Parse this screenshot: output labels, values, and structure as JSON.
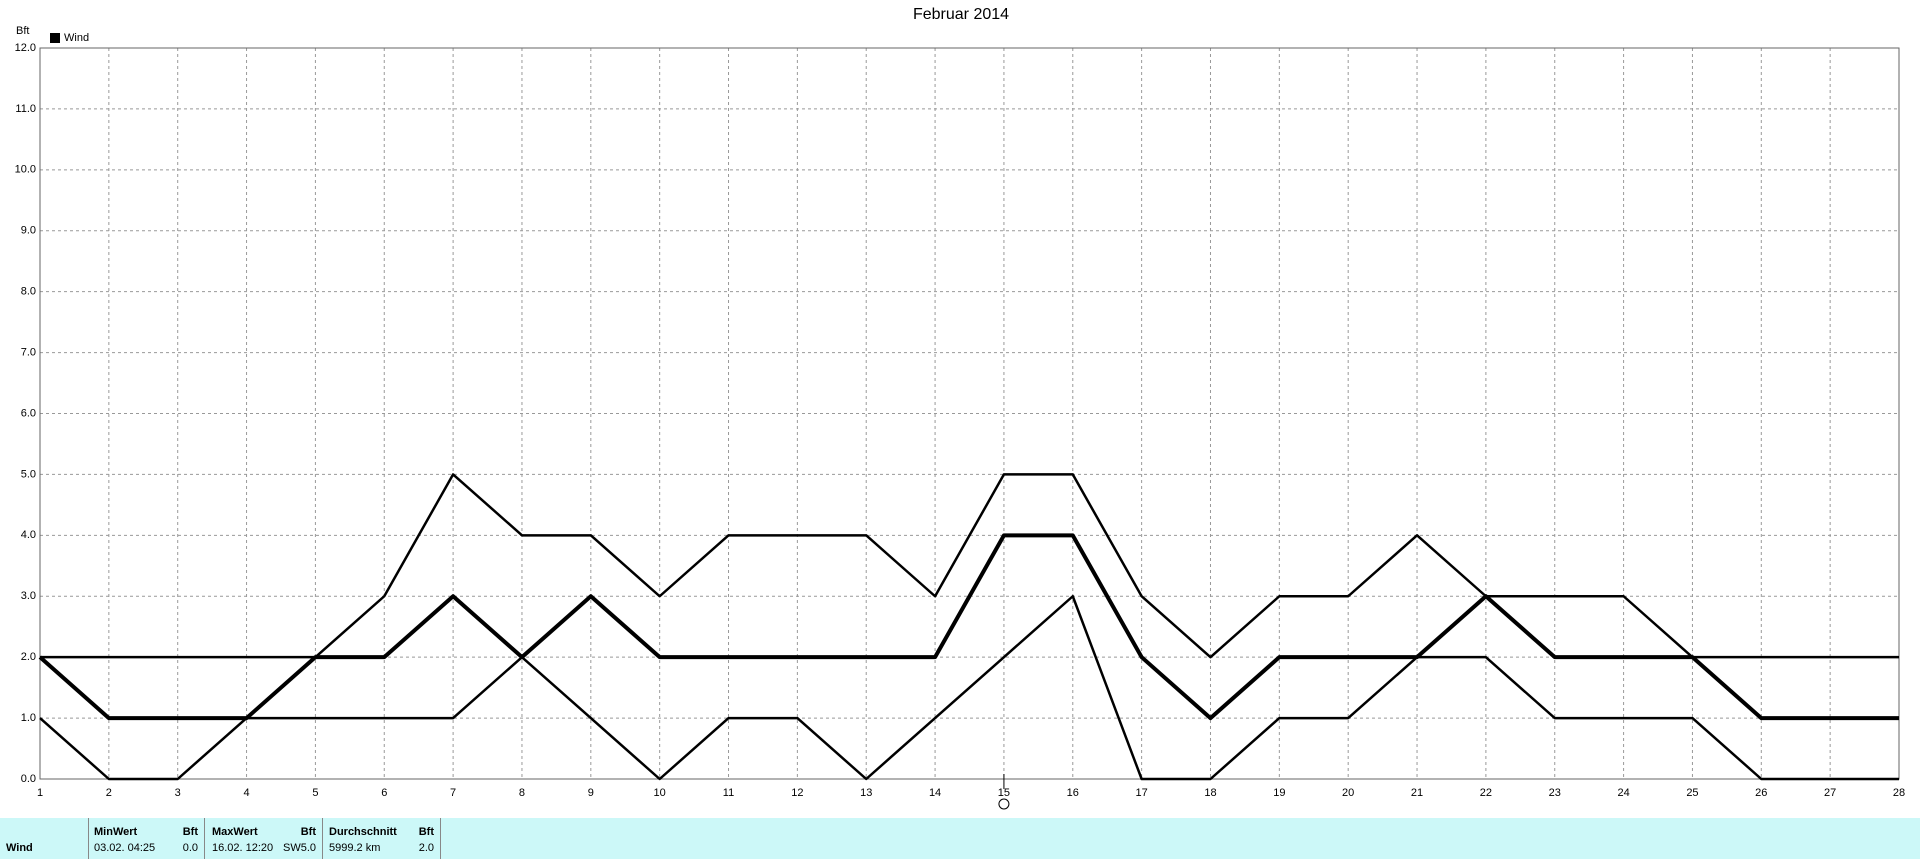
{
  "chart_data": {
    "type": "line",
    "title": "Februar 2014",
    "y_label": "Bft",
    "x": [
      1,
      2,
      3,
      4,
      5,
      6,
      7,
      8,
      9,
      10,
      11,
      12,
      13,
      14,
      15,
      16,
      17,
      18,
      19,
      20,
      21,
      22,
      23,
      24,
      25,
      26,
      27,
      28
    ],
    "xlim": [
      1,
      28
    ],
    "xticks": [
      1,
      2,
      3,
      4,
      5,
      6,
      7,
      8,
      9,
      10,
      11,
      12,
      13,
      14,
      15,
      16,
      17,
      18,
      19,
      20,
      21,
      22,
      23,
      24,
      25,
      26,
      27,
      28
    ],
    "ylim": [
      0,
      12
    ],
    "yticks": [
      {
        "value": 0,
        "label": "0.0"
      },
      {
        "value": 1,
        "label": "1.0"
      },
      {
        "value": 2,
        "label": "2.0"
      },
      {
        "value": 3,
        "label": "3.0"
      },
      {
        "value": 4,
        "label": "4.0"
      },
      {
        "value": 5,
        "label": "5.0"
      },
      {
        "value": 6,
        "label": "6.0"
      },
      {
        "value": 7,
        "label": "7.0"
      },
      {
        "value": 8,
        "label": "8.0"
      },
      {
        "value": 9,
        "label": "9.0"
      },
      {
        "value": 10,
        "label": "10.0"
      },
      {
        "value": 11,
        "label": "11.0"
      },
      {
        "value": 12,
        "label": "12.0"
      }
    ],
    "grid": true,
    "legend_position": "top-left",
    "series": [
      {
        "name": "Wind",
        "color": "#000000",
        "values": [
          2,
          1,
          1,
          1,
          2,
          2,
          3,
          2,
          3,
          2,
          2,
          2,
          2,
          2,
          4,
          4,
          2,
          1,
          2,
          2,
          2,
          3,
          2,
          2,
          2,
          1,
          1,
          1
        ]
      },
      {
        "color": "#000000",
        "values": [
          2,
          2,
          2,
          2,
          2,
          3,
          5,
          4,
          4,
          3,
          4,
          4,
          4,
          3,
          5,
          5,
          3,
          2,
          3,
          3,
          4,
          3,
          3,
          3,
          2,
          2,
          2,
          2
        ]
      },
      {
        "color": "#000000",
        "values": [
          1,
          0,
          0,
          1,
          1,
          1,
          1,
          2,
          1,
          0,
          1,
          1,
          0,
          1,
          2,
          3,
          0,
          0,
          1,
          1,
          2,
          2,
          1,
          1,
          1,
          0,
          0,
          0
        ]
      }
    ]
  },
  "footer": {
    "row_label": "Wind",
    "min": {
      "header": "MinWert",
      "unit": "Bft",
      "date": "03.02.  04:25",
      "value": "0.0"
    },
    "max": {
      "header": "MaxWert",
      "unit": "Bft",
      "date": "16.02.  12:20",
      "direction": "SW",
      "value": "5.0"
    },
    "avg": {
      "header": "Durchschnitt",
      "unit": "Bft",
      "distance": "5999.2 km",
      "value": "2.0"
    }
  }
}
